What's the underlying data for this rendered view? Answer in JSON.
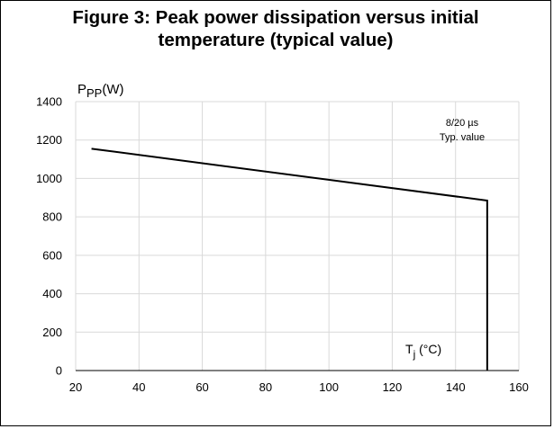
{
  "figure": {
    "title_line1": "Figure 3: Peak power dissipation versus initial",
    "title_line2": "temperature (typical value)"
  },
  "chart_data": {
    "type": "line",
    "title": "Figure 3: Peak power dissipation versus initial temperature (typical value)",
    "ylabel": "P_PP(W)",
    "ylabel_main": "P",
    "ylabel_sub": "PP",
    "ylabel_unit": "(W)",
    "xlabel": "T_j (°C)",
    "xlabel_main": "T",
    "xlabel_sub": "j",
    "xlabel_unit": " (°C)",
    "xlim": [
      20,
      160
    ],
    "ylim": [
      0,
      1400
    ],
    "x_ticks": [
      20,
      40,
      60,
      80,
      100,
      120,
      140,
      160
    ],
    "y_ticks": [
      0,
      200,
      400,
      600,
      800,
      1000,
      1200,
      1400
    ],
    "grid": true,
    "annotation": [
      "8/20 µs",
      "Typ. value"
    ],
    "series": [
      {
        "x": [
          25,
          150,
          150
        ],
        "y": [
          1155,
          885,
          0
        ],
        "color": "#000000"
      }
    ]
  }
}
